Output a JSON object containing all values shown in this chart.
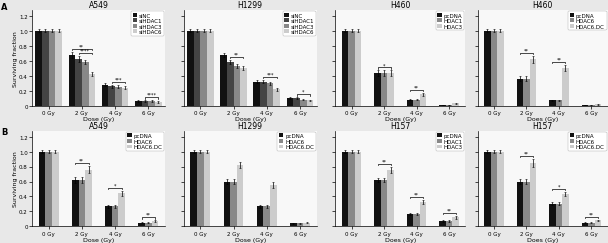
{
  "panels": [
    {
      "title": "A549",
      "row": 0,
      "col": 0,
      "legend_labels": [
        "siNC",
        "siHDAC1",
        "siHDAC3",
        "siHDAC6"
      ],
      "bar_colors": [
        "#111111",
        "#444444",
        "#888888",
        "#cccccc"
      ],
      "doses": [
        "0 Gy",
        "2 Gy",
        "4 Gy",
        "6 Gy"
      ],
      "data": [
        [
          1.0,
          0.68,
          0.28,
          0.06
        ],
        [
          1.0,
          0.62,
          0.26,
          0.06
        ],
        [
          1.0,
          0.58,
          0.25,
          0.06
        ],
        [
          1.0,
          0.42,
          0.24,
          0.05
        ]
      ],
      "errors": [
        [
          0.02,
          0.04,
          0.02,
          0.01
        ],
        [
          0.02,
          0.04,
          0.02,
          0.01
        ],
        [
          0.02,
          0.03,
          0.02,
          0.01
        ],
        [
          0.02,
          0.03,
          0.02,
          0.01
        ]
      ],
      "xlabel": "Dose (Gy)",
      "ylabel": "Surviving fraction",
      "sig_brackets": [
        {
          "di": 1,
          "s1": 1,
          "s2": 3,
          "stars": "****"
        },
        {
          "di": 1,
          "s1": 0,
          "s2": 3,
          "stars": "**"
        },
        {
          "di": 2,
          "s1": 1,
          "s2": 3,
          "stars": "***"
        },
        {
          "di": 3,
          "s1": 1,
          "s2": 3,
          "stars": "****"
        }
      ]
    },
    {
      "title": "H1299",
      "row": 0,
      "col": 1,
      "legend_labels": [
        "siNC",
        "siHDAC1",
        "siHDAC3",
        "siHDAC6"
      ],
      "bar_colors": [
        "#111111",
        "#444444",
        "#888888",
        "#cccccc"
      ],
      "doses": [
        "0 Gy",
        "2 Gy",
        "4 Gy",
        "6 Gy"
      ],
      "data": [
        [
          1.0,
          0.68,
          0.32,
          0.1
        ],
        [
          1.0,
          0.58,
          0.32,
          0.1
        ],
        [
          1.0,
          0.53,
          0.3,
          0.08
        ],
        [
          1.0,
          0.5,
          0.22,
          0.07
        ]
      ],
      "errors": [
        [
          0.02,
          0.03,
          0.02,
          0.01
        ],
        [
          0.02,
          0.03,
          0.02,
          0.01
        ],
        [
          0.02,
          0.03,
          0.02,
          0.01
        ],
        [
          0.02,
          0.03,
          0.02,
          0.01
        ]
      ],
      "xlabel": "Dose (Gy)",
      "ylabel": "Surviving fraction",
      "sig_brackets": [
        {
          "di": 1,
          "s1": 1,
          "s2": 3,
          "stars": "**"
        },
        {
          "di": 2,
          "s1": 1,
          "s2": 3,
          "stars": "***"
        },
        {
          "di": 3,
          "s1": 1,
          "s2": 3,
          "stars": "*"
        }
      ]
    },
    {
      "title": "H460",
      "row": 0,
      "col": 2,
      "legend_labels": [
        "pcDNA",
        "HDAC1",
        "HDAC3"
      ],
      "bar_colors": [
        "#111111",
        "#888888",
        "#cccccc"
      ],
      "doses": [
        "0 Gy",
        "2 Gy",
        "4 Gy",
        "6 Gy"
      ],
      "data": [
        [
          1.0,
          0.43,
          0.08,
          0.01
        ],
        [
          1.0,
          0.43,
          0.08,
          0.01
        ],
        [
          1.0,
          0.43,
          0.15,
          0.03
        ]
      ],
      "errors": [
        [
          0.02,
          0.04,
          0.01,
          0.003
        ],
        [
          0.02,
          0.04,
          0.01,
          0.003
        ],
        [
          0.02,
          0.04,
          0.02,
          0.005
        ]
      ],
      "xlabel": "Does (Gy)",
      "ylabel": "Surviving fraction",
      "sig_brackets": [
        {
          "di": 1,
          "s1": 0,
          "s2": 2,
          "stars": "*"
        },
        {
          "di": 2,
          "s1": 0,
          "s2": 2,
          "stars": "**"
        }
      ]
    },
    {
      "title": "H460",
      "row": 0,
      "col": 3,
      "legend_labels": [
        "pcDNA",
        "HDAC6",
        "HDAC6.DC"
      ],
      "bar_colors": [
        "#111111",
        "#888888",
        "#cccccc"
      ],
      "doses": [
        "0 Gy",
        "2 Gy",
        "4 Gy",
        "6 Gy"
      ],
      "data": [
        [
          1.0,
          0.36,
          0.07,
          0.01
        ],
        [
          1.0,
          0.36,
          0.07,
          0.01
        ],
        [
          1.0,
          0.62,
          0.5,
          0.02
        ]
      ],
      "errors": [
        [
          0.02,
          0.03,
          0.01,
          0.003
        ],
        [
          0.02,
          0.03,
          0.01,
          0.003
        ],
        [
          0.02,
          0.05,
          0.04,
          0.005
        ]
      ],
      "xlabel": "Does (Gy)",
      "ylabel": "Surviving fraction",
      "sig_brackets": [
        {
          "di": 1,
          "s1": 0,
          "s2": 2,
          "stars": "**"
        },
        {
          "di": 2,
          "s1": 0,
          "s2": 2,
          "stars": "**"
        }
      ]
    },
    {
      "title": "A549",
      "row": 1,
      "col": 0,
      "legend_labels": [
        "pcDNA",
        "HDAC6",
        "HDAC6.DC"
      ],
      "bar_colors": [
        "#111111",
        "#888888",
        "#cccccc"
      ],
      "doses": [
        "0 Gy",
        "2 Gy",
        "4 Gy",
        "6 Gy"
      ],
      "data": [
        [
          1.0,
          0.62,
          0.27,
          0.05
        ],
        [
          1.0,
          0.62,
          0.27,
          0.05
        ],
        [
          1.0,
          0.76,
          0.44,
          0.07
        ]
      ],
      "errors": [
        [
          0.02,
          0.04,
          0.02,
          0.01
        ],
        [
          0.02,
          0.04,
          0.02,
          0.01
        ],
        [
          0.02,
          0.05,
          0.03,
          0.01
        ]
      ],
      "xlabel": "Dose (Gy)",
      "ylabel": "Surviving fraction",
      "sig_brackets": [
        {
          "di": 1,
          "s1": 0,
          "s2": 2,
          "stars": "**"
        },
        {
          "di": 2,
          "s1": 0,
          "s2": 2,
          "stars": "*"
        },
        {
          "di": 3,
          "s1": 0,
          "s2": 2,
          "stars": "**"
        }
      ]
    },
    {
      "title": "H1299",
      "row": 1,
      "col": 1,
      "legend_labels": [
        "pcDNA",
        "HDAC6",
        "HDAC6.DC"
      ],
      "bar_colors": [
        "#111111",
        "#888888",
        "#cccccc"
      ],
      "doses": [
        "0 Gy",
        "2 Gy",
        "4 Gy",
        "6 Gy"
      ],
      "data": [
        [
          1.0,
          0.6,
          0.27,
          0.04
        ],
        [
          1.0,
          0.6,
          0.27,
          0.04
        ],
        [
          1.0,
          0.82,
          0.55,
          0.05
        ]
      ],
      "errors": [
        [
          0.02,
          0.03,
          0.02,
          0.005
        ],
        [
          0.02,
          0.03,
          0.02,
          0.005
        ],
        [
          0.02,
          0.04,
          0.04,
          0.008
        ]
      ],
      "xlabel": "Dose (Gy)",
      "ylabel": "Surviving fraction",
      "sig_brackets": []
    },
    {
      "title": "H157",
      "row": 1,
      "col": 2,
      "legend_labels": [
        "pcDNA",
        "HDAC1",
        "HDAC3"
      ],
      "bar_colors": [
        "#111111",
        "#888888",
        "#cccccc"
      ],
      "doses": [
        "0 Gy",
        "2 Gy",
        "4 Gy",
        "6 Gy"
      ],
      "data": [
        [
          1.0,
          0.62,
          0.17,
          0.07
        ],
        [
          1.0,
          0.62,
          0.17,
          0.07
        ],
        [
          1.0,
          0.75,
          0.33,
          0.12
        ]
      ],
      "errors": [
        [
          0.02,
          0.03,
          0.015,
          0.01
        ],
        [
          0.02,
          0.03,
          0.015,
          0.01
        ],
        [
          0.02,
          0.04,
          0.025,
          0.015
        ]
      ],
      "xlabel": "Does (Gy)",
      "ylabel": "Surviving fraction",
      "sig_brackets": [
        {
          "di": 1,
          "s1": 0,
          "s2": 2,
          "stars": "**"
        },
        {
          "di": 2,
          "s1": 0,
          "s2": 2,
          "stars": "**"
        },
        {
          "di": 3,
          "s1": 0,
          "s2": 2,
          "stars": "**"
        }
      ]
    },
    {
      "title": "H157",
      "row": 1,
      "col": 3,
      "legend_labels": [
        "pcDNA",
        "HDAC6",
        "HDAC6.DC"
      ],
      "bar_colors": [
        "#111111",
        "#888888",
        "#cccccc"
      ],
      "doses": [
        "0 Gy",
        "2 Gy",
        "4 Gy",
        "6 Gy"
      ],
      "data": [
        [
          1.0,
          0.6,
          0.3,
          0.05
        ],
        [
          1.0,
          0.6,
          0.3,
          0.05
        ],
        [
          1.0,
          0.85,
          0.43,
          0.08
        ]
      ],
      "errors": [
        [
          0.02,
          0.03,
          0.02,
          0.008
        ],
        [
          0.02,
          0.03,
          0.02,
          0.008
        ],
        [
          0.02,
          0.05,
          0.03,
          0.01
        ]
      ],
      "xlabel": "Does (Gy)",
      "ylabel": "Surviving fraction",
      "sig_brackets": [
        {
          "di": 1,
          "s1": 0,
          "s2": 2,
          "stars": "**"
        },
        {
          "di": 2,
          "s1": 0,
          "s2": 2,
          "stars": "*"
        },
        {
          "di": 3,
          "s1": 0,
          "s2": 2,
          "stars": "**"
        }
      ]
    }
  ],
  "ylim": [
    0,
    1.28
  ],
  "yticks": [
    0,
    0.2,
    0.4,
    0.6,
    0.8,
    1.0,
    1.2
  ],
  "background_color": "#f0f0f0",
  "title_fontsize": 5.5,
  "label_fontsize": 4.5,
  "tick_fontsize": 4,
  "legend_fontsize": 4,
  "bar_width": 0.2
}
